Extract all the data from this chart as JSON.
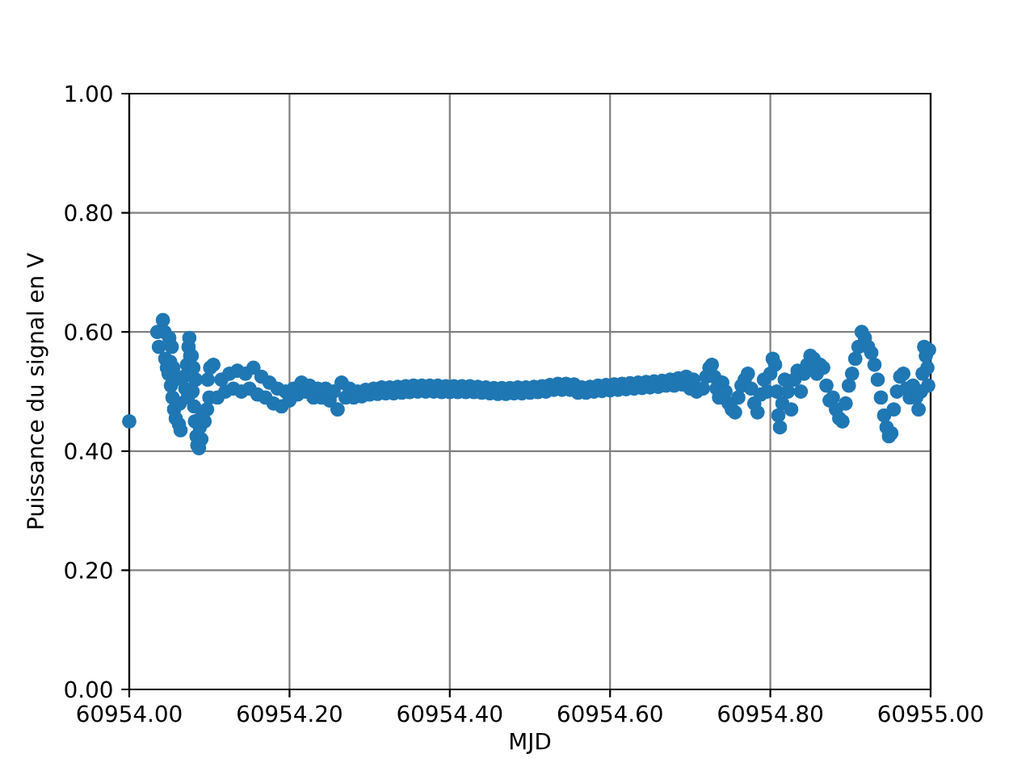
{
  "chart_data": {
    "type": "scatter",
    "xlabel": "MJD",
    "ylabel": "Puissance du signal en V",
    "color": "#1f77b4",
    "marker": "circle",
    "grid": true,
    "xlim": [
      60954.0,
      60955.0
    ],
    "ylim": [
      0,
      1
    ],
    "xticks": [
      {
        "value": 60954.0,
        "label": "60954.00"
      },
      {
        "value": 60954.2,
        "label": "60954.20"
      },
      {
        "value": 60954.4,
        "label": "60954.40"
      },
      {
        "value": 60954.6,
        "label": "60954.60"
      },
      {
        "value": 60954.8,
        "label": "60954.80"
      },
      {
        "value": 60955.0,
        "label": "60955.00"
      }
    ],
    "yticks": [
      {
        "value": 0,
        "label": "0.00"
      },
      {
        "value": 0.2,
        "label": "0.20"
      },
      {
        "value": 0.4,
        "label": "0.40"
      },
      {
        "value": 0.6,
        "label": "0.60"
      },
      {
        "value": 0.8,
        "label": "0.80"
      },
      {
        "value": 1,
        "label": "1.00"
      }
    ],
    "x": [
      60954.0,
      60954.035,
      60954.037,
      60954.042,
      60954.044,
      60954.045,
      60954.047,
      60954.049,
      60954.05,
      60954.051,
      60954.052,
      60954.053,
      60954.054,
      60954.055,
      60954.056,
      60954.057,
      60954.058,
      60954.062,
      60954.063,
      60954.064,
      60954.068,
      60954.07,
      60954.072,
      60954.073,
      60954.074,
      60954.075,
      60954.076,
      60954.078,
      60954.079,
      60954.08,
      60954.081,
      60954.082,
      60954.083,
      60954.084,
      60954.085,
      60954.087,
      60954.088,
      60954.09,
      60954.091,
      60954.094,
      60954.097,
      60954.098,
      60954.1,
      60954.101,
      60954.105,
      60954.11,
      60954.115,
      60954.12,
      60954.125,
      60954.13,
      60954.135,
      60954.14,
      60954.145,
      60954.15,
      60954.155,
      60954.16,
      60954.165,
      60954.17,
      60954.175,
      60954.18,
      60954.185,
      60954.19,
      60954.195,
      60954.2,
      60954.205,
      60954.21,
      60954.215,
      60954.22,
      60954.225,
      60954.23,
      60954.235,
      60954.24,
      60954.245,
      60954.25,
      60954.255,
      60954.26,
      60954.265,
      60954.27,
      60954.275,
      60954.28,
      60954.285,
      60954.29,
      60954.295,
      60954.3,
      60954.305,
      60954.31,
      60954.315,
      60954.32,
      60954.325,
      60954.33,
      60954.335,
      60954.34,
      60954.345,
      60954.35,
      60954.355,
      60954.36,
      60954.365,
      60954.37,
      60954.375,
      60954.38,
      60954.385,
      60954.39,
      60954.395,
      60954.4,
      60954.405,
      60954.41,
      60954.415,
      60954.42,
      60954.425,
      60954.43,
      60954.435,
      60954.44,
      60954.445,
      60954.45,
      60954.455,
      60954.46,
      60954.465,
      60954.47,
      60954.475,
      60954.48,
      60954.485,
      60954.49,
      60954.495,
      60954.5,
      60954.505,
      60954.51,
      60954.515,
      60954.52,
      60954.525,
      60954.53,
      60954.535,
      60954.54,
      60954.545,
      60954.55,
      60954.555,
      60954.56,
      60954.565,
      60954.57,
      60954.575,
      60954.58,
      60954.585,
      60954.59,
      60954.595,
      60954.6,
      60954.605,
      60954.61,
      60954.615,
      60954.62,
      60954.625,
      60954.63,
      60954.635,
      60954.64,
      60954.645,
      60954.65,
      60954.655,
      60954.66,
      60954.665,
      60954.67,
      60954.675,
      60954.68,
      60954.685,
      60954.69,
      60954.695,
      60954.7,
      60954.704,
      60954.708,
      60954.716,
      60954.72,
      60954.724,
      60954.727,
      60954.73,
      60954.733,
      60954.736,
      60954.74,
      60954.744,
      60954.748,
      60954.752,
      60954.756,
      60954.76,
      60954.764,
      60954.768,
      60954.772,
      60954.776,
      60954.78,
      60954.784,
      60954.788,
      60954.792,
      60954.796,
      60954.8,
      60954.803,
      60954.806,
      60954.808,
      60954.81,
      60954.812,
      60954.815,
      60954.818,
      60954.822,
      60954.826,
      60954.83,
      60954.834,
      60954.838,
      60954.842,
      60954.846,
      60954.85,
      60954.854,
      60954.858,
      60954.862,
      60954.866,
      60954.87,
      60954.874,
      60954.878,
      60954.882,
      60954.886,
      60954.89,
      60954.894,
      60954.898,
      60954.902,
      60954.906,
      60954.91,
      60954.914,
      60954.918,
      60954.922,
      60954.926,
      60954.93,
      60954.934,
      60954.938,
      60954.942,
      60954.945,
      60954.948,
      60954.951,
      60954.954,
      60954.958,
      60954.962,
      60954.966,
      60954.97,
      60954.974,
      60954.978,
      60954.982,
      60954.985,
      60954.988,
      60954.99,
      60954.992,
      60954.994,
      60954.996,
      60954.997,
      60954.998
    ],
    "values": [
      0.45,
      0.6,
      0.575,
      0.62,
      0.6,
      0.555,
      0.54,
      0.53,
      0.59,
      0.55,
      0.51,
      0.575,
      0.49,
      0.54,
      0.47,
      0.52,
      0.455,
      0.445,
      0.48,
      0.435,
      0.525,
      0.505,
      0.545,
      0.49,
      0.575,
      0.59,
      0.56,
      0.56,
      0.5,
      0.54,
      0.475,
      0.45,
      0.52,
      0.425,
      0.41,
      0.405,
      0.44,
      0.42,
      0.46,
      0.45,
      0.47,
      0.52,
      0.49,
      0.54,
      0.545,
      0.49,
      0.52,
      0.5,
      0.53,
      0.505,
      0.535,
      0.5,
      0.53,
      0.505,
      0.54,
      0.495,
      0.525,
      0.49,
      0.515,
      0.48,
      0.505,
      0.475,
      0.5,
      0.485,
      0.505,
      0.495,
      0.515,
      0.5,
      0.51,
      0.49,
      0.505,
      0.49,
      0.505,
      0.485,
      0.5,
      0.47,
      0.515,
      0.49,
      0.505,
      0.49,
      0.5,
      0.492,
      0.503,
      0.495,
      0.505,
      0.496,
      0.507,
      0.497,
      0.507,
      0.497,
      0.508,
      0.498,
      0.509,
      0.499,
      0.51,
      0.5,
      0.51,
      0.5,
      0.51,
      0.5,
      0.51,
      0.499,
      0.509,
      0.499,
      0.509,
      0.499,
      0.509,
      0.499,
      0.509,
      0.499,
      0.508,
      0.498,
      0.507,
      0.497,
      0.506,
      0.496,
      0.506,
      0.496,
      0.506,
      0.497,
      0.507,
      0.497,
      0.507,
      0.498,
      0.508,
      0.499,
      0.509,
      0.5,
      0.511,
      0.503,
      0.513,
      0.503,
      0.513,
      0.503,
      0.512,
      0.498,
      0.507,
      0.498,
      0.508,
      0.5,
      0.51,
      0.501,
      0.511,
      0.502,
      0.512,
      0.503,
      0.513,
      0.504,
      0.514,
      0.505,
      0.515,
      0.506,
      0.516,
      0.507,
      0.517,
      0.508,
      0.518,
      0.51,
      0.52,
      0.51,
      0.522,
      0.512,
      0.525,
      0.505,
      0.52,
      0.5,
      0.505,
      0.525,
      0.54,
      0.545,
      0.525,
      0.505,
      0.49,
      0.515,
      0.5,
      0.48,
      0.47,
      0.465,
      0.49,
      0.51,
      0.52,
      0.53,
      0.505,
      0.48,
      0.465,
      0.495,
      0.52,
      0.5,
      0.53,
      0.555,
      0.545,
      0.5,
      0.46,
      0.44,
      0.48,
      0.52,
      0.5,
      0.47,
      0.52,
      0.535,
      0.5,
      0.53,
      0.545,
      0.56,
      0.555,
      0.53,
      0.545,
      0.54,
      0.51,
      0.485,
      0.49,
      0.47,
      0.455,
      0.45,
      0.48,
      0.51,
      0.53,
      0.555,
      0.575,
      0.6,
      0.59,
      0.575,
      0.565,
      0.545,
      0.52,
      0.49,
      0.46,
      0.44,
      0.425,
      0.43,
      0.47,
      0.5,
      0.525,
      0.53,
      0.505,
      0.49,
      0.51,
      0.49,
      0.47,
      0.5,
      0.53,
      0.575,
      0.56,
      0.54,
      0.51,
      0.57
    ]
  }
}
